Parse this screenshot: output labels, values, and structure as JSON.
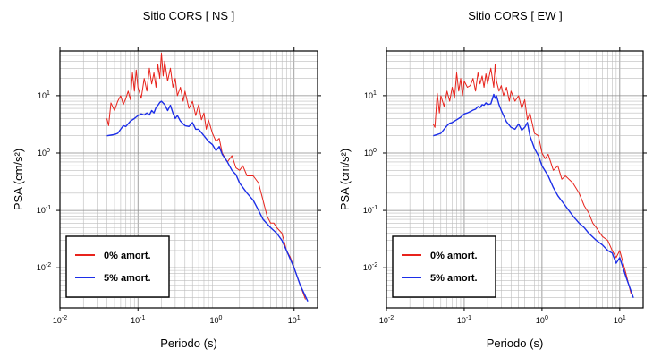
{
  "chart_data": [
    {
      "type": "line",
      "title": "Sitio CORS [ NS ]",
      "xlabel": "Periodo (s)",
      "ylabel": "PSA (cm/s²)",
      "xscale": "log",
      "yscale": "log",
      "xlim": [
        0.01,
        20
      ],
      "ylim": [
        0.002,
        60
      ],
      "grid": true,
      "legend": "bottom-left",
      "x_ticks": [
        {
          "base": "10",
          "exp": "-2"
        },
        {
          "base": "10",
          "exp": "-1"
        },
        {
          "base": "10",
          "exp": "0"
        },
        {
          "base": "10",
          "exp": "1"
        }
      ],
      "y_ticks": [
        {
          "base": "10",
          "exp": "-2"
        },
        {
          "base": "10",
          "exp": "-1"
        },
        {
          "base": "10",
          "exp": "0"
        },
        {
          "base": "10",
          "exp": "1"
        }
      ],
      "series": [
        {
          "name": "0% amort.",
          "color": "#e8231c",
          "x": [
            0.04,
            0.042,
            0.045,
            0.05,
            0.055,
            0.06,
            0.065,
            0.07,
            0.075,
            0.08,
            0.085,
            0.09,
            0.095,
            0.1,
            0.11,
            0.12,
            0.13,
            0.14,
            0.15,
            0.16,
            0.17,
            0.18,
            0.19,
            0.2,
            0.21,
            0.22,
            0.24,
            0.26,
            0.28,
            0.3,
            0.32,
            0.35,
            0.38,
            0.4,
            0.45,
            0.5,
            0.55,
            0.6,
            0.65,
            0.7,
            0.75,
            0.8,
            0.9,
            1.0,
            1.1,
            1.2,
            1.4,
            1.6,
            1.8,
            2.0,
            2.2,
            2.5,
            3.0,
            3.5,
            4.0,
            4.5,
            5.0,
            5.5,
            6.0,
            7.0,
            8.0,
            9.0,
            10.0,
            12.0,
            14.0
          ],
          "y": [
            4.0,
            3.0,
            7.5,
            5.5,
            8.0,
            10.0,
            7.0,
            9.0,
            12.0,
            8.5,
            25.0,
            12.0,
            28.0,
            14.0,
            9.0,
            20.0,
            12.0,
            30.0,
            16.0,
            25.0,
            14.0,
            35.0,
            20.0,
            55.0,
            22.0,
            40.0,
            18.0,
            30.0,
            14.0,
            20.0,
            10.0,
            14.0,
            8.0,
            12.0,
            6.0,
            8.0,
            4.5,
            7.0,
            3.8,
            5.0,
            2.6,
            3.8,
            2.2,
            1.6,
            1.8,
            1.0,
            0.7,
            0.9,
            0.55,
            0.5,
            0.6,
            0.4,
            0.4,
            0.3,
            0.15,
            0.08,
            0.06,
            0.06,
            0.05,
            0.04,
            0.02,
            0.015,
            0.01,
            0.005,
            0.0028
          ]
        },
        {
          "name": "5% amort.",
          "color": "#1c2ee8",
          "x": [
            0.04,
            0.045,
            0.05,
            0.055,
            0.06,
            0.065,
            0.07,
            0.08,
            0.09,
            0.1,
            0.11,
            0.12,
            0.13,
            0.14,
            0.15,
            0.16,
            0.17,
            0.18,
            0.19,
            0.2,
            0.22,
            0.24,
            0.26,
            0.28,
            0.3,
            0.32,
            0.35,
            0.4,
            0.45,
            0.5,
            0.55,
            0.6,
            0.7,
            0.8,
            0.9,
            1.0,
            1.1,
            1.2,
            1.4,
            1.6,
            1.8,
            2.0,
            2.5,
            3.0,
            3.5,
            4.0,
            5.0,
            6.0,
            7.0,
            8.0,
            10.0,
            12.0,
            15.0
          ],
          "y": [
            2.0,
            2.05,
            2.1,
            2.2,
            2.6,
            3.0,
            2.9,
            3.6,
            4.0,
            4.5,
            4.8,
            4.6,
            5.0,
            4.6,
            5.5,
            5.0,
            6.2,
            6.8,
            7.6,
            8.0,
            7.0,
            5.5,
            6.8,
            5.0,
            4.0,
            4.5,
            3.6,
            3.0,
            2.9,
            3.4,
            2.6,
            2.6,
            2.0,
            1.6,
            1.4,
            1.1,
            1.3,
            0.95,
            0.7,
            0.5,
            0.42,
            0.3,
            0.2,
            0.15,
            0.1,
            0.07,
            0.05,
            0.04,
            0.03,
            0.02,
            0.01,
            0.005,
            0.0026
          ]
        }
      ]
    },
    {
      "type": "line",
      "title": "Sitio CORS [ EW ]",
      "xlabel": "Periodo (s)",
      "ylabel": "PSA (cm/s²)",
      "xscale": "log",
      "yscale": "log",
      "xlim": [
        0.01,
        20
      ],
      "ylim": [
        0.002,
        60
      ],
      "grid": true,
      "legend": "bottom-left",
      "x_ticks": [
        {
          "base": "10",
          "exp": "-2"
        },
        {
          "base": "10",
          "exp": "-1"
        },
        {
          "base": "10",
          "exp": "0"
        },
        {
          "base": "10",
          "exp": "1"
        }
      ],
      "y_ticks": [
        {
          "base": "10",
          "exp": "-2"
        },
        {
          "base": "10",
          "exp": "-1"
        },
        {
          "base": "10",
          "exp": "0"
        },
        {
          "base": "10",
          "exp": "1"
        }
      ],
      "series": [
        {
          "name": "0% amort.",
          "color": "#e8231c",
          "x": [
            0.04,
            0.042,
            0.045,
            0.048,
            0.05,
            0.055,
            0.06,
            0.065,
            0.07,
            0.075,
            0.08,
            0.085,
            0.09,
            0.095,
            0.1,
            0.11,
            0.12,
            0.13,
            0.14,
            0.15,
            0.16,
            0.17,
            0.18,
            0.19,
            0.2,
            0.22,
            0.24,
            0.25,
            0.26,
            0.28,
            0.3,
            0.32,
            0.35,
            0.38,
            0.4,
            0.45,
            0.5,
            0.55,
            0.6,
            0.65,
            0.7,
            0.8,
            0.9,
            1.0,
            1.1,
            1.2,
            1.4,
            1.6,
            1.8,
            2.0,
            2.5,
            3.0,
            3.5,
            4.0,
            4.5,
            5.0,
            6.0,
            7.0,
            8.0,
            9.0,
            10.0,
            12.0,
            14.0
          ],
          "y": [
            3.2,
            2.8,
            11.0,
            5.0,
            10.0,
            6.5,
            12.0,
            8.0,
            14.0,
            9.0,
            25.0,
            12.0,
            20.0,
            10.0,
            18.0,
            14.0,
            15.0,
            20.0,
            12.0,
            25.0,
            16.0,
            22.0,
            14.0,
            24.0,
            16.0,
            30.0,
            14.0,
            35.0,
            18.0,
            12.0,
            15.0,
            10.0,
            14.0,
            8.0,
            12.0,
            8.0,
            10.0,
            6.0,
            8.5,
            3.8,
            5.0,
            2.2,
            2.0,
            1.0,
            0.8,
            0.95,
            0.5,
            0.6,
            0.35,
            0.4,
            0.3,
            0.2,
            0.12,
            0.09,
            0.06,
            0.05,
            0.035,
            0.03,
            0.02,
            0.015,
            0.02,
            0.008,
            0.0035
          ]
        },
        {
          "name": "5% amort.",
          "color": "#1c2ee8",
          "x": [
            0.04,
            0.045,
            0.05,
            0.055,
            0.06,
            0.065,
            0.07,
            0.08,
            0.09,
            0.1,
            0.11,
            0.12,
            0.13,
            0.14,
            0.15,
            0.16,
            0.17,
            0.18,
            0.19,
            0.2,
            0.22,
            0.24,
            0.25,
            0.26,
            0.28,
            0.3,
            0.32,
            0.35,
            0.4,
            0.45,
            0.5,
            0.55,
            0.6,
            0.65,
            0.7,
            0.8,
            0.9,
            1.0,
            1.2,
            1.4,
            1.6,
            2.0,
            2.5,
            3.0,
            3.5,
            4.0,
            5.0,
            6.0,
            7.0,
            8.0,
            9.0,
            10.0,
            12.0,
            15.0
          ],
          "y": [
            2.0,
            2.1,
            2.2,
            2.6,
            3.0,
            3.3,
            3.4,
            3.8,
            4.2,
            4.8,
            5.0,
            5.3,
            5.6,
            5.8,
            6.5,
            6.2,
            7.0,
            6.8,
            7.5,
            7.0,
            7.2,
            10.5,
            9.0,
            10.0,
            7.0,
            5.5,
            4.5,
            3.5,
            2.8,
            2.6,
            3.2,
            2.5,
            2.8,
            3.4,
            2.0,
            1.2,
            0.9,
            0.6,
            0.4,
            0.25,
            0.18,
            0.12,
            0.08,
            0.06,
            0.05,
            0.04,
            0.03,
            0.025,
            0.02,
            0.018,
            0.012,
            0.015,
            0.007,
            0.003
          ]
        }
      ]
    }
  ]
}
